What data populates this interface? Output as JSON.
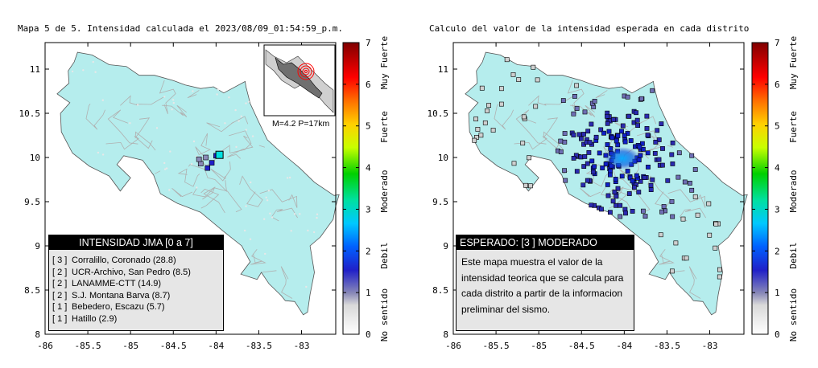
{
  "left_panel": {
    "title": "Mapa 5 de 5. Intensidad calculada el 2023/08/09_01:54:59_p.m.",
    "inset_label": "M=4.2  P=17km",
    "legend_title": "INTENSIDAD JMA [0 a 7]",
    "stations": [
      {
        "level": "[ 3 ]",
        "name": "Corralillo, Coronado (28.8)"
      },
      {
        "level": "[ 2 ]",
        "name": "UCR-Archivo, San Pedro (8.5)"
      },
      {
        "level": "[ 2 ]",
        "name": "LANAMME-CTT (14.9)"
      },
      {
        "level": "[ 2 ]",
        "name": "S.J. Montana Barva (8.7)"
      },
      {
        "level": "[ 1 ]",
        "name": "Bebedero, Escazu (5.7)"
      },
      {
        "level": "[ 1 ]",
        "name": "Hatillo (2.9)"
      }
    ]
  },
  "right_panel": {
    "title": "Calculo del valor de la intensidad esperada en cada distrito",
    "legend_title": "ESPERADO: [3 ] MODERADO",
    "description": "Este mapa muestra el valor de la intensidad teorica que se calcula para cada distrito a partir de la informacion preliminar del sismo."
  },
  "axes": {
    "x_ticks": [
      "-86",
      "-85.5",
      "-85",
      "-84.5",
      "-84",
      "-83.5",
      "-83"
    ],
    "y_ticks": [
      "11",
      "10.5",
      "10",
      "9.5",
      "9",
      "8.5",
      "8"
    ]
  },
  "colorbar": {
    "ticks": [
      "7",
      "6",
      "5",
      "4",
      "3",
      "2",
      "1",
      "0"
    ],
    "labels": [
      "Muy Fuerte",
      "Fuerte",
      "Moderado",
      "Debil",
      "No sentido"
    ]
  },
  "colors": {
    "land": "#b5eded",
    "roads": "#b0b0b0",
    "text": "#000000"
  }
}
